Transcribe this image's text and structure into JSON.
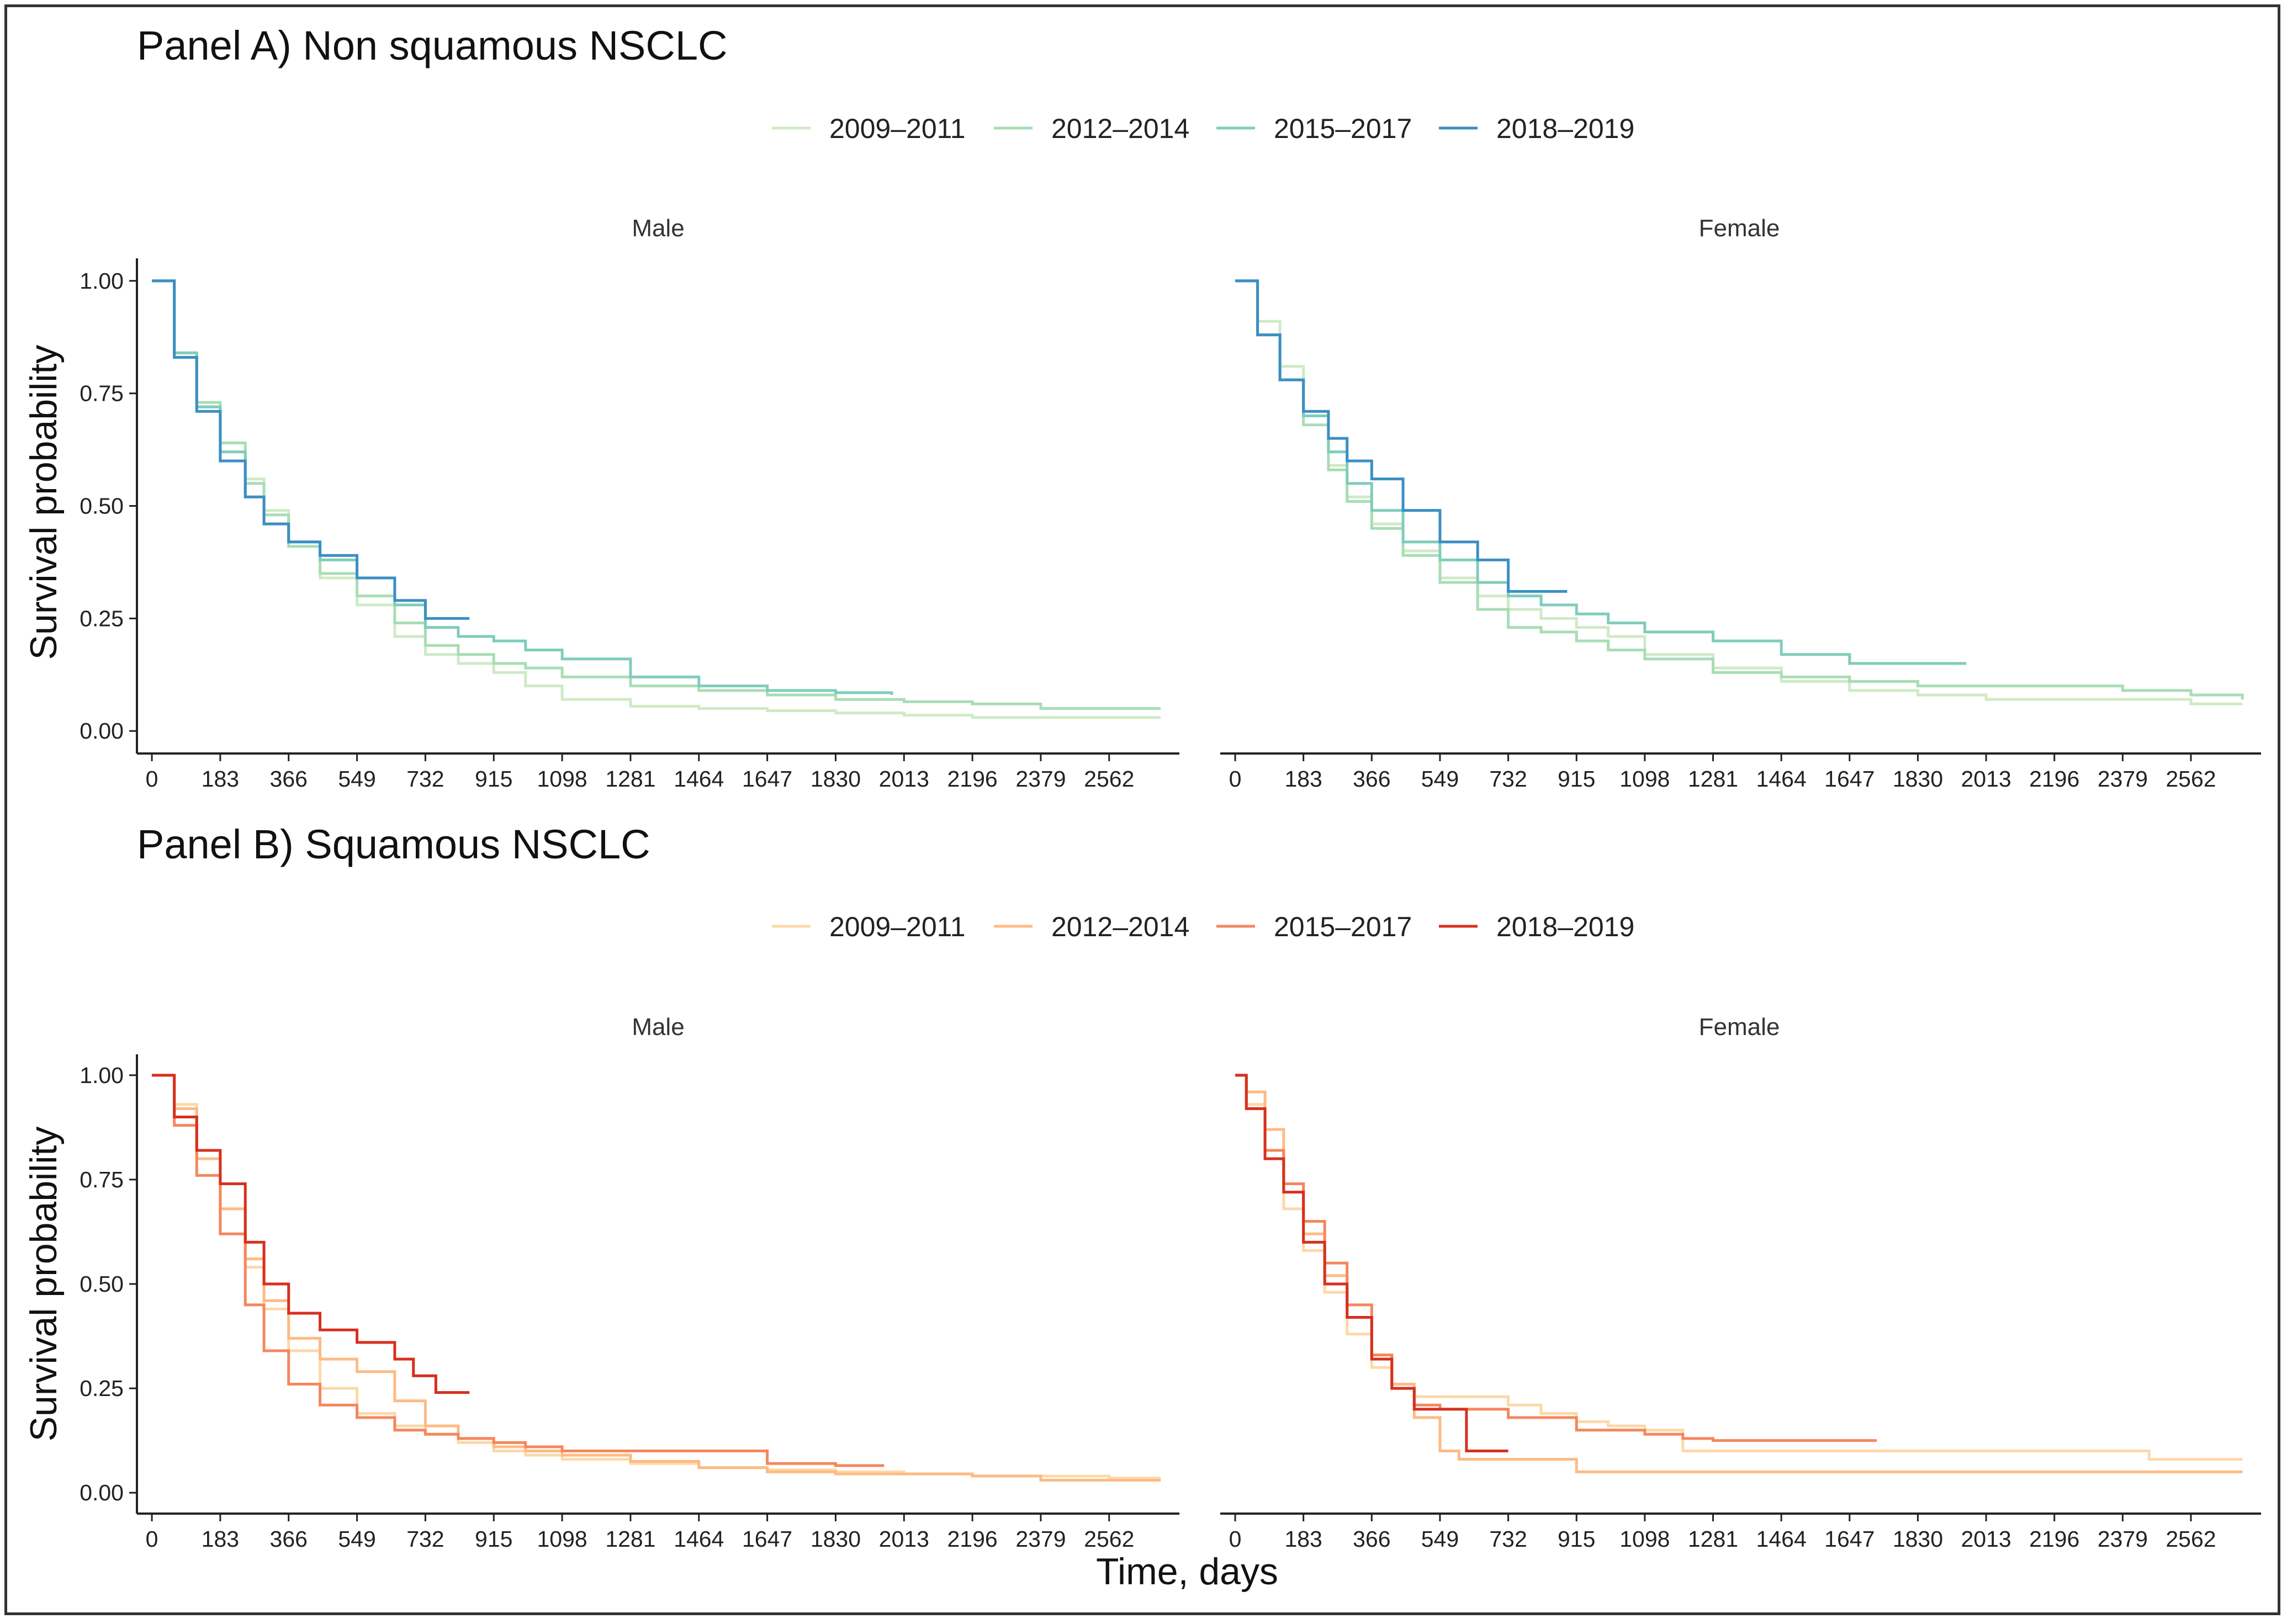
{
  "figure": {
    "y_axis_title": "Survival probability",
    "x_axis_title": "Time, days"
  },
  "chart_data": [
    {
      "type": "line",
      "panel": "A",
      "facet": "Male",
      "title": "Panel A) Non squamous NSCLC",
      "xlabel": "",
      "ylabel": "Survival probability",
      "xlim": [
        -40,
        2750
      ],
      "ylim": [
        -0.05,
        1.05
      ],
      "x_ticks": [
        0,
        183,
        366,
        549,
        732,
        915,
        1098,
        1281,
        1464,
        1647,
        1830,
        2013,
        2196,
        2379,
        2562
      ],
      "y_ticks": [
        "0.00",
        "0.25",
        "0.50",
        "0.75",
        "1.00"
      ],
      "series": [
        {
          "name": "2009–2011",
          "color": "#cfeac5",
          "x": [
            0,
            60,
            120,
            183,
            250,
            300,
            366,
            450,
            549,
            650,
            732,
            820,
            915,
            1000,
            1098,
            1281,
            1464,
            1647,
            1830,
            2013,
            2196,
            2379,
            2562,
            2700
          ],
          "y": [
            1.0,
            0.83,
            0.72,
            0.64,
            0.56,
            0.49,
            0.42,
            0.34,
            0.28,
            0.21,
            0.17,
            0.15,
            0.13,
            0.1,
            0.07,
            0.055,
            0.05,
            0.045,
            0.04,
            0.035,
            0.03,
            0.03,
            0.03,
            0.03
          ]
        },
        {
          "name": "2012–2014",
          "color": "#a8ddb5",
          "x": [
            0,
            60,
            120,
            183,
            250,
            300,
            366,
            450,
            549,
            650,
            732,
            820,
            915,
            1000,
            1098,
            1281,
            1464,
            1647,
            1830,
            2013,
            2196,
            2379,
            2562,
            2700
          ],
          "y": [
            1.0,
            0.84,
            0.73,
            0.64,
            0.55,
            0.48,
            0.41,
            0.35,
            0.3,
            0.24,
            0.19,
            0.17,
            0.15,
            0.14,
            0.12,
            0.1,
            0.09,
            0.08,
            0.07,
            0.065,
            0.06,
            0.05,
            0.05,
            0.05
          ]
        },
        {
          "name": "2015–2017",
          "color": "#7fcdbb",
          "x": [
            0,
            60,
            120,
            183,
            250,
            300,
            366,
            450,
            549,
            650,
            732,
            820,
            915,
            1000,
            1098,
            1281,
            1464,
            1647,
            1830,
            1980
          ],
          "y": [
            1.0,
            0.84,
            0.72,
            0.62,
            0.52,
            0.46,
            0.42,
            0.38,
            0.34,
            0.28,
            0.23,
            0.21,
            0.2,
            0.18,
            0.16,
            0.12,
            0.1,
            0.09,
            0.085,
            0.08
          ]
        },
        {
          "name": "2018–2019",
          "color": "#3b8fc4",
          "x": [
            0,
            60,
            120,
            183,
            250,
            300,
            366,
            450,
            549,
            650,
            732,
            850
          ],
          "y": [
            1.0,
            0.83,
            0.71,
            0.6,
            0.52,
            0.46,
            0.42,
            0.39,
            0.34,
            0.29,
            0.25,
            0.25
          ]
        }
      ]
    },
    {
      "type": "line",
      "panel": "A",
      "facet": "Female",
      "xlabel": "",
      "ylabel": "",
      "xlim": [
        -40,
        2750
      ],
      "ylim": [
        -0.05,
        1.05
      ],
      "x_ticks": [
        0,
        183,
        366,
        549,
        732,
        915,
        1098,
        1281,
        1464,
        1647,
        1830,
        2013,
        2196,
        2379,
        2562
      ],
      "series": [
        {
          "name": "2009–2011",
          "color": "#cfeac5",
          "x": [
            0,
            60,
            120,
            183,
            250,
            300,
            366,
            450,
            549,
            650,
            732,
            820,
            915,
            1000,
            1098,
            1281,
            1464,
            1647,
            1830,
            2013,
            2196,
            2379,
            2562,
            2700
          ],
          "y": [
            1.0,
            0.91,
            0.81,
            0.7,
            0.59,
            0.52,
            0.46,
            0.4,
            0.34,
            0.3,
            0.27,
            0.25,
            0.23,
            0.21,
            0.17,
            0.14,
            0.11,
            0.09,
            0.08,
            0.07,
            0.07,
            0.07,
            0.06,
            0.06
          ]
        },
        {
          "name": "2012–2014",
          "color": "#a8ddb5",
          "x": [
            0,
            60,
            120,
            183,
            250,
            300,
            366,
            450,
            549,
            650,
            732,
            820,
            915,
            1000,
            1098,
            1281,
            1464,
            1647,
            1830,
            2013,
            2196,
            2379,
            2562,
            2700
          ],
          "y": [
            1.0,
            0.88,
            0.78,
            0.68,
            0.58,
            0.51,
            0.45,
            0.39,
            0.33,
            0.27,
            0.23,
            0.22,
            0.2,
            0.18,
            0.16,
            0.13,
            0.12,
            0.11,
            0.1,
            0.1,
            0.1,
            0.09,
            0.08,
            0.07
          ]
        },
        {
          "name": "2015–2017",
          "color": "#7fcdbb",
          "x": [
            0,
            60,
            120,
            183,
            250,
            300,
            366,
            450,
            549,
            650,
            732,
            820,
            915,
            1000,
            1098,
            1281,
            1464,
            1647,
            1830,
            1960
          ],
          "y": [
            1.0,
            0.88,
            0.78,
            0.7,
            0.62,
            0.55,
            0.49,
            0.42,
            0.38,
            0.33,
            0.3,
            0.28,
            0.26,
            0.24,
            0.22,
            0.2,
            0.17,
            0.15,
            0.15,
            0.15
          ]
        },
        {
          "name": "2018–2019",
          "color": "#3b8fc4",
          "x": [
            0,
            60,
            120,
            183,
            250,
            300,
            366,
            450,
            549,
            650,
            732,
            820,
            890
          ],
          "y": [
            1.0,
            0.88,
            0.78,
            0.71,
            0.65,
            0.6,
            0.56,
            0.49,
            0.42,
            0.38,
            0.31,
            0.31,
            0.31
          ]
        }
      ]
    },
    {
      "type": "line",
      "panel": "B",
      "facet": "Male",
      "title": "Panel B) Squamous NSCLC",
      "xlabel": "",
      "ylabel": "Survival probability",
      "xlim": [
        -40,
        2750
      ],
      "ylim": [
        -0.05,
        1.05
      ],
      "x_ticks": [
        0,
        183,
        366,
        549,
        732,
        915,
        1098,
        1281,
        1464,
        1647,
        1830,
        2013,
        2196,
        2379,
        2562
      ],
      "y_ticks": [
        "0.00",
        "0.25",
        "0.50",
        "0.75",
        "1.00"
      ],
      "series": [
        {
          "name": "2009–2011",
          "color": "#fdd9a7",
          "x": [
            0,
            60,
            120,
            183,
            250,
            300,
            366,
            450,
            549,
            650,
            732,
            820,
            915,
            1000,
            1098,
            1281,
            1464,
            1647,
            1830,
            2013,
            2196,
            2379,
            2562,
            2700
          ],
          "y": [
            1.0,
            0.93,
            0.82,
            0.68,
            0.54,
            0.44,
            0.34,
            0.25,
            0.19,
            0.16,
            0.14,
            0.12,
            0.1,
            0.09,
            0.08,
            0.07,
            0.06,
            0.055,
            0.05,
            0.045,
            0.04,
            0.04,
            0.035,
            0.035
          ]
        },
        {
          "name": "2012–2014",
          "color": "#fdbb84",
          "x": [
            0,
            60,
            120,
            183,
            250,
            300,
            366,
            450,
            549,
            650,
            732,
            820,
            915,
            1000,
            1098,
            1281,
            1464,
            1647,
            1830,
            2013,
            2196,
            2379,
            2562,
            2700
          ],
          "y": [
            1.0,
            0.92,
            0.8,
            0.68,
            0.56,
            0.46,
            0.37,
            0.32,
            0.29,
            0.22,
            0.16,
            0.13,
            0.11,
            0.1,
            0.09,
            0.075,
            0.06,
            0.05,
            0.045,
            0.045,
            0.04,
            0.03,
            0.03,
            0.03
          ]
        },
        {
          "name": "2015–2017",
          "color": "#f4875e",
          "x": [
            0,
            60,
            120,
            183,
            250,
            300,
            366,
            450,
            549,
            650,
            732,
            820,
            915,
            1000,
            1098,
            1281,
            1464,
            1647,
            1830,
            1960
          ],
          "y": [
            1.0,
            0.88,
            0.76,
            0.62,
            0.45,
            0.34,
            0.26,
            0.21,
            0.18,
            0.15,
            0.14,
            0.13,
            0.12,
            0.11,
            0.1,
            0.1,
            0.1,
            0.07,
            0.065,
            0.065
          ]
        },
        {
          "name": "2018–2019",
          "color": "#d7301f",
          "x": [
            0,
            60,
            120,
            183,
            250,
            300,
            366,
            450,
            549,
            650,
            700,
            760,
            850
          ],
          "y": [
            1.0,
            0.9,
            0.82,
            0.74,
            0.6,
            0.5,
            0.43,
            0.39,
            0.36,
            0.32,
            0.28,
            0.24,
            0.24
          ]
        }
      ]
    },
    {
      "type": "line",
      "panel": "B",
      "facet": "Female",
      "xlabel": "",
      "ylabel": "",
      "xlim": [
        -40,
        2750
      ],
      "ylim": [
        -0.05,
        1.05
      ],
      "x_ticks": [
        0,
        183,
        366,
        549,
        732,
        915,
        1098,
        1281,
        1464,
        1647,
        1830,
        2013,
        2196,
        2379,
        2562
      ],
      "series": [
        {
          "name": "2009–2011",
          "color": "#fdd9a7",
          "x": [
            0,
            30,
            80,
            130,
            183,
            240,
            300,
            366,
            420,
            480,
            549,
            650,
            732,
            820,
            915,
            1000,
            1098,
            1200,
            1281,
            1464,
            1647,
            1830,
            2013,
            2196,
            2379,
            2450,
            2700
          ],
          "y": [
            1.0,
            0.93,
            0.8,
            0.68,
            0.58,
            0.48,
            0.38,
            0.3,
            0.25,
            0.23,
            0.23,
            0.23,
            0.21,
            0.19,
            0.17,
            0.16,
            0.15,
            0.1,
            0.1,
            0.1,
            0.1,
            0.1,
            0.1,
            0.1,
            0.1,
            0.08,
            0.08
          ]
        },
        {
          "name": "2012–2014",
          "color": "#fdbb84",
          "x": [
            0,
            30,
            80,
            130,
            183,
            240,
            300,
            366,
            420,
            480,
            549,
            600,
            700,
            800,
            915,
            1100,
            1400,
            1700,
            2000,
            2400,
            2700
          ],
          "y": [
            1.0,
            0.96,
            0.87,
            0.74,
            0.62,
            0.52,
            0.42,
            0.33,
            0.26,
            0.18,
            0.1,
            0.08,
            0.08,
            0.08,
            0.05,
            0.05,
            0.05,
            0.05,
            0.05,
            0.05,
            0.05
          ]
        },
        {
          "name": "2015–2017",
          "color": "#f4875e",
          "x": [
            0,
            30,
            80,
            130,
            183,
            240,
            300,
            366,
            420,
            480,
            549,
            650,
            732,
            820,
            915,
            1000,
            1098,
            1200,
            1281,
            1464,
            1647,
            1720
          ],
          "y": [
            1.0,
            0.92,
            0.82,
            0.74,
            0.65,
            0.55,
            0.45,
            0.33,
            0.25,
            0.21,
            0.2,
            0.2,
            0.18,
            0.18,
            0.15,
            0.15,
            0.14,
            0.13,
            0.125,
            0.125,
            0.125,
            0.125
          ]
        },
        {
          "name": "2018–2019",
          "color": "#d7301f",
          "x": [
            0,
            30,
            80,
            130,
            183,
            240,
            300,
            366,
            420,
            480,
            549,
            620,
            732
          ],
          "y": [
            1.0,
            0.92,
            0.8,
            0.72,
            0.6,
            0.5,
            0.42,
            0.32,
            0.25,
            0.2,
            0.2,
            0.1,
            0.1
          ]
        }
      ]
    }
  ],
  "legends": [
    {
      "panel": "A",
      "entries": [
        {
          "label": "2009–2011",
          "color": "#cfeac5"
        },
        {
          "label": "2012–2014",
          "color": "#a8ddb5"
        },
        {
          "label": "2015–2017",
          "color": "#7fcdbb"
        },
        {
          "label": "2018–2019",
          "color": "#3b8fc4"
        }
      ]
    },
    {
      "panel": "B",
      "entries": [
        {
          "label": "2009–2011",
          "color": "#fdd9a7"
        },
        {
          "label": "2012–2014",
          "color": "#fdbb84"
        },
        {
          "label": "2015–2017",
          "color": "#f4875e"
        },
        {
          "label": "2018–2019",
          "color": "#d7301f"
        }
      ]
    }
  ]
}
